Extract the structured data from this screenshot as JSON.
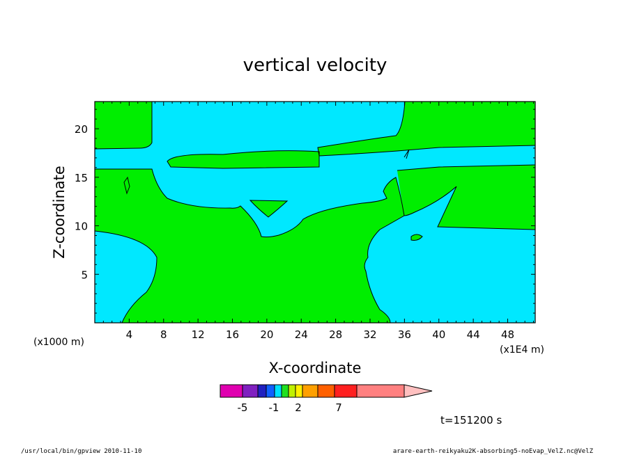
{
  "chart_data": {
    "type": "contour",
    "title": "vertical velocity",
    "xlabel": "X-coordinate",
    "ylabel": "Z-coordinate",
    "x_unit_left": "(x1000 m)",
    "x_unit_right": "(x1E4 m)",
    "x_ticks": [
      4,
      8,
      12,
      16,
      20,
      24,
      28,
      32,
      36,
      40,
      44,
      48
    ],
    "y_ticks": [
      5,
      10,
      15,
      20
    ],
    "xlim": [
      0,
      51.2
    ],
    "ylim": [
      0,
      22.8
    ],
    "colorbar": {
      "tick_labels": [
        "-5",
        "-1",
        "2",
        "7"
      ],
      "colors": [
        "#e000b0",
        "#8020c0",
        "#2020c0",
        "#1060ff",
        "#00e0ff",
        "#20e020",
        "#c0f000",
        "#fff000",
        "#ffa000",
        "#ff6000",
        "#ff2020",
        "#ff8080",
        "#ffc0c0"
      ]
    },
    "fill_colors": {
      "positive": "#00ee00",
      "negative": "#00e8ff"
    },
    "time_label": "t=151200 s"
  },
  "footer": {
    "left": "/usr/local/bin/gpview  2010-11-10",
    "right": "arare-earth-reikyaku2K-absorbing5-noEvap_VelZ.nc@VelZ"
  }
}
